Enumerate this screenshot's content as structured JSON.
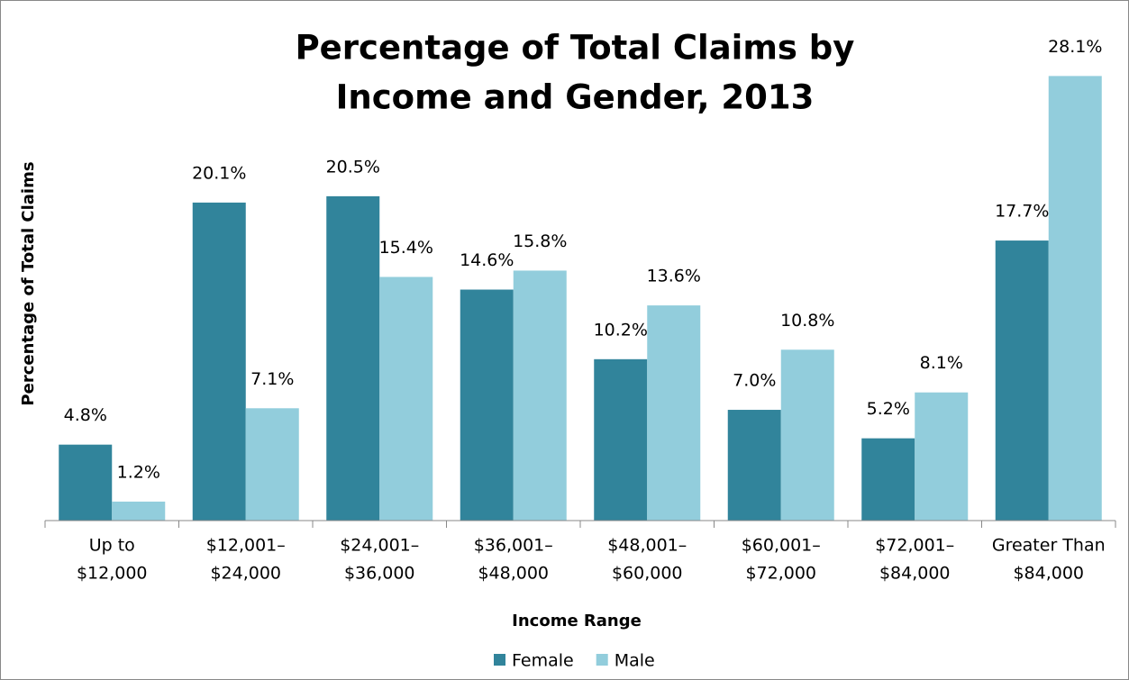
{
  "chart_data": {
    "type": "bar",
    "title": [
      "Percentage of Total Claims by",
      "Income and Gender, 2013"
    ],
    "y_label": "Percentage of Total Claims",
    "x_label": "Income Range",
    "categories": [
      [
        "Up to",
        "$12,000"
      ],
      [
        "$12,001–",
        "$24,000"
      ],
      [
        "$24,001–",
        "$36,000"
      ],
      [
        "$36,001–",
        "$48,000"
      ],
      [
        "$48,001–",
        "$60,000"
      ],
      [
        "$60,001–",
        "$72,000"
      ],
      [
        "$72,001–",
        "$84,000"
      ],
      [
        "Greater Than",
        "$84,000"
      ]
    ],
    "series": [
      {
        "name": "Female",
        "color": "#31849b",
        "values": [
          4.8,
          20.1,
          20.5,
          14.6,
          10.2,
          7.0,
          5.2,
          17.7
        ],
        "value_labels": [
          "4.8%",
          "20.1%",
          "20.5%",
          "14.6%",
          "10.2%",
          "7.0%",
          "5.2%",
          "17.7%"
        ]
      },
      {
        "name": "Male",
        "color": "#92cddc",
        "values": [
          1.2,
          7.1,
          15.4,
          15.8,
          13.6,
          10.8,
          8.1,
          28.1
        ],
        "value_labels": [
          "1.2%",
          "7.1%",
          "15.4%",
          "15.8%",
          "13.6%",
          "10.8%",
          "8.1%",
          "28.1%"
        ]
      }
    ],
    "ylim": [
      0,
      30
    ],
    "legend": "bottom"
  }
}
